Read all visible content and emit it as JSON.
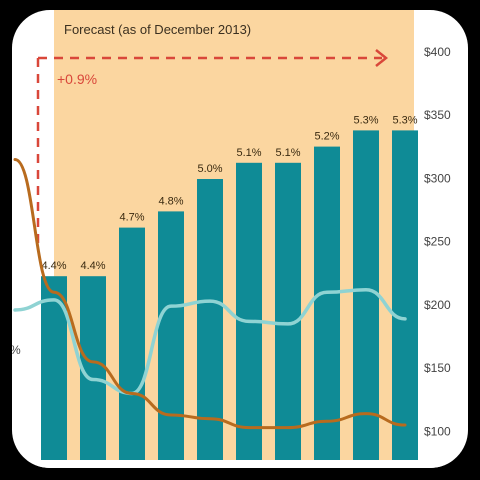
{
  "chart_data": {
    "type": "bar",
    "title": "",
    "forecast_label": "Forecast (as of December 2013)",
    "change_label": "+0.9%",
    "categories": [
      "",
      "",
      "",
      "",
      "",
      "",
      "",
      "",
      "",
      "",
      ""
    ],
    "bars": {
      "values": [
        4.4,
        4.4,
        4.7,
        4.8,
        5.0,
        5.1,
        5.1,
        5.2,
        5.3,
        5.3
      ],
      "labels": [
        "4.4%",
        "4.4%",
        "4.7%",
        "4.8%",
        "5.0%",
        "5.1%",
        "5.1%",
        "5.2%",
        "5.3%",
        "5.3%"
      ],
      "color": "#0f8b96"
    },
    "right_axis": {
      "ticks": [
        "$400",
        "$350",
        "$300",
        "$250",
        "$200",
        "$150",
        "$100"
      ],
      "tick_values": [
        400,
        350,
        300,
        250,
        200,
        150,
        100
      ],
      "range": [
        75,
        415
      ]
    },
    "series": [
      {
        "values": [
          196,
          204,
          141,
          130,
          199,
          203,
          187,
          185,
          210,
          212,
          189
        ],
        "color": "#8fd3d3"
      },
      {
        "values": [
          315,
          210,
          155,
          130,
          113,
          110,
          103,
          103,
          108,
          114,
          105
        ],
        "color": "#b86b1e"
      }
    ],
    "left_fragment": "%",
    "colors": {
      "forecast_bg": "#fbd6a0",
      "arrow": "#d9473a",
      "axis_text": "#444444"
    }
  }
}
